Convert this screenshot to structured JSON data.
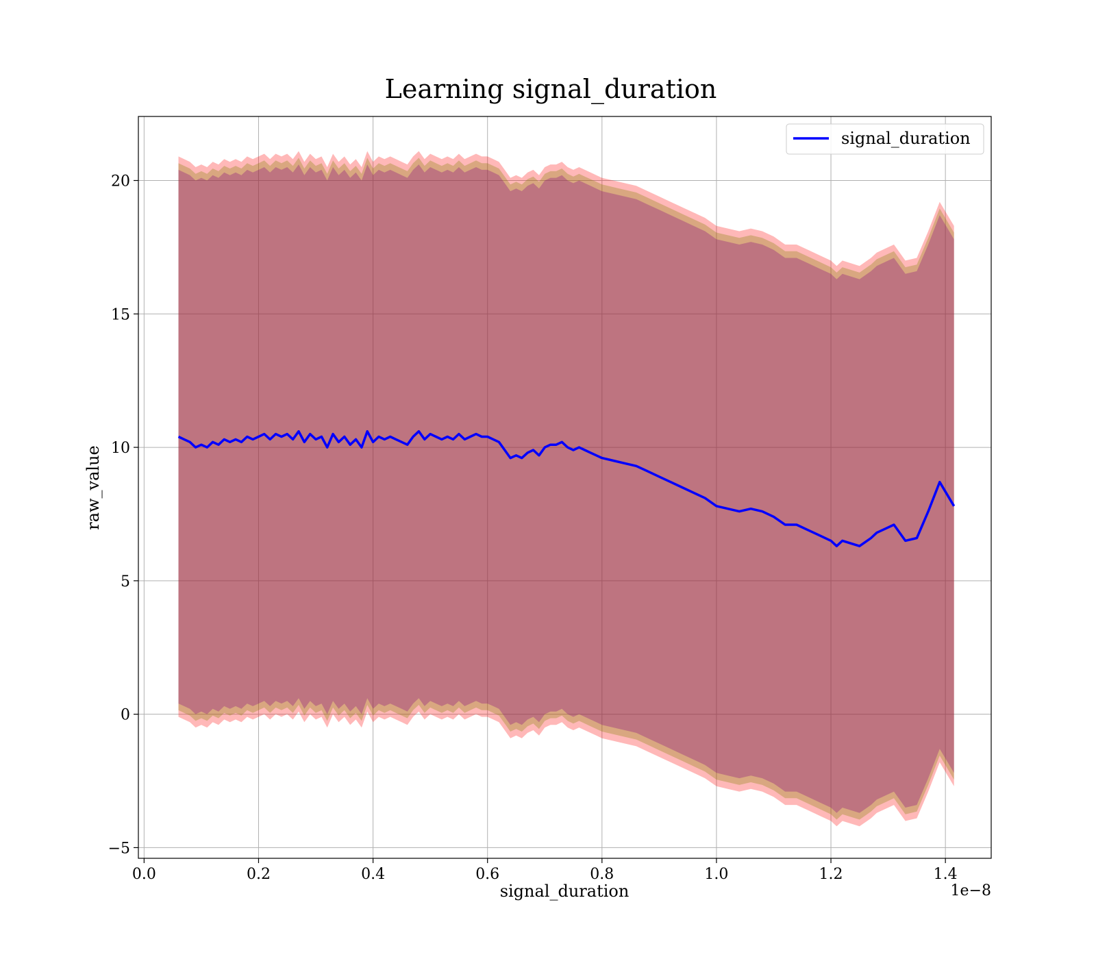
{
  "chart_data": {
    "type": "line",
    "title": "Learning signal_duration",
    "xlabel": "signal_duration",
    "ylabel": "raw_value",
    "x_offset_label": "1e−8",
    "xlim": [
      -0.01,
      1.48
    ],
    "ylim": [
      -5.4,
      22.4
    ],
    "x_ticks": [
      0.0,
      0.2,
      0.4,
      0.6,
      0.8,
      1.0,
      1.2,
      1.4
    ],
    "x_tick_labels": [
      "0.0",
      "0.2",
      "0.4",
      "0.6",
      "0.8",
      "1.0",
      "1.2",
      "1.4"
    ],
    "y_ticks": [
      -5,
      0,
      5,
      10,
      15,
      20
    ],
    "y_tick_labels": [
      "−5",
      "0",
      "5",
      "10",
      "15",
      "20"
    ],
    "grid": true,
    "legend": {
      "position": "top-right",
      "entries": [
        "signal_duration"
      ]
    },
    "series": [
      {
        "name": "signal_duration",
        "color": "#0000ff",
        "x": [
          0.06,
          0.07,
          0.08,
          0.09,
          0.1,
          0.11,
          0.12,
          0.13,
          0.14,
          0.15,
          0.16,
          0.17,
          0.18,
          0.19,
          0.2,
          0.21,
          0.22,
          0.23,
          0.24,
          0.25,
          0.26,
          0.27,
          0.28,
          0.29,
          0.3,
          0.31,
          0.32,
          0.33,
          0.34,
          0.35,
          0.36,
          0.37,
          0.38,
          0.39,
          0.4,
          0.41,
          0.42,
          0.43,
          0.44,
          0.45,
          0.46,
          0.47,
          0.48,
          0.49,
          0.5,
          0.51,
          0.52,
          0.53,
          0.54,
          0.55,
          0.56,
          0.57,
          0.58,
          0.59,
          0.6,
          0.61,
          0.62,
          0.63,
          0.64,
          0.65,
          0.66,
          0.67,
          0.68,
          0.69,
          0.7,
          0.71,
          0.72,
          0.73,
          0.74,
          0.75,
          0.76,
          0.77,
          0.78,
          0.79,
          0.8,
          0.82,
          0.84,
          0.86,
          0.88,
          0.9,
          0.92,
          0.94,
          0.96,
          0.98,
          1.0,
          1.02,
          1.04,
          1.06,
          1.08,
          1.1,
          1.12,
          1.14,
          1.16,
          1.18,
          1.2,
          1.21,
          1.22,
          1.25,
          1.27,
          1.28,
          1.3,
          1.31,
          1.33,
          1.35,
          1.37,
          1.39,
          1.415
        ],
        "y": [
          10.4,
          10.3,
          10.2,
          10.0,
          10.1,
          10.0,
          10.2,
          10.1,
          10.3,
          10.2,
          10.3,
          10.2,
          10.4,
          10.3,
          10.4,
          10.5,
          10.3,
          10.5,
          10.4,
          10.5,
          10.3,
          10.6,
          10.2,
          10.5,
          10.3,
          10.4,
          10.0,
          10.5,
          10.2,
          10.4,
          10.1,
          10.3,
          10.0,
          10.6,
          10.2,
          10.4,
          10.3,
          10.4,
          10.3,
          10.2,
          10.1,
          10.4,
          10.6,
          10.3,
          10.5,
          10.4,
          10.3,
          10.4,
          10.3,
          10.5,
          10.3,
          10.4,
          10.5,
          10.4,
          10.4,
          10.3,
          10.2,
          9.9,
          9.6,
          9.7,
          9.6,
          9.8,
          9.9,
          9.7,
          10.0,
          10.1,
          10.1,
          10.2,
          10.0,
          9.9,
          10.0,
          9.9,
          9.8,
          9.7,
          9.6,
          9.5,
          9.4,
          9.3,
          9.1,
          8.9,
          8.7,
          8.5,
          8.3,
          8.1,
          7.8,
          7.7,
          7.6,
          7.7,
          7.6,
          7.4,
          7.1,
          7.1,
          6.9,
          6.7,
          6.5,
          6.3,
          6.5,
          6.3,
          6.6,
          6.8,
          7.0,
          7.1,
          6.5,
          6.6,
          7.6,
          8.7,
          7.8
        ]
      }
    ],
    "bands": [
      {
        "color": "#ff0000",
        "opacity": 0.28,
        "halfwidth": 10.5
      },
      {
        "color": "#808000",
        "opacity": 0.3,
        "halfwidth": 10.25
      },
      {
        "color": "#800080",
        "opacity": 0.3,
        "halfwidth": 10.0
      }
    ]
  }
}
